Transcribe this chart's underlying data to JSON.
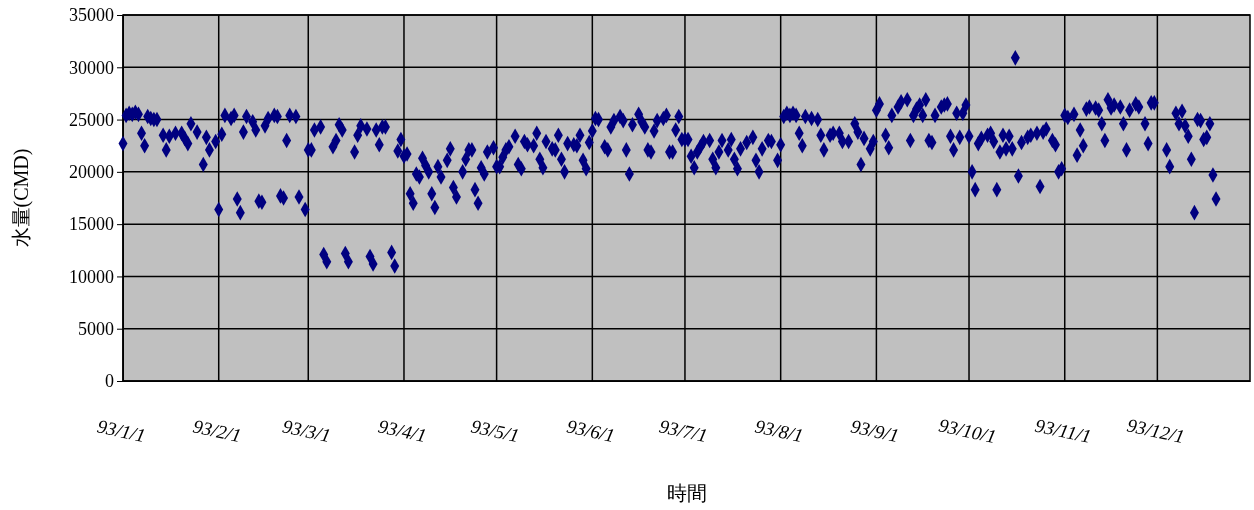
{
  "chart_data": {
    "type": "scatter",
    "xlabel": "時間",
    "ylabel": "水量(CMD)",
    "xlim": [
      "--01-01",
      "--12-31"
    ],
    "ylim": [
      0,
      35000
    ],
    "xticks": [
      {
        "value": "--01-01",
        "label": "93/1/1"
      },
      {
        "value": "--02-01",
        "label": "93/2/1"
      },
      {
        "value": "--03-01",
        "label": "93/3/1"
      },
      {
        "value": "--04-01",
        "label": "93/4/1"
      },
      {
        "value": "--05-01",
        "label": "93/5/1"
      },
      {
        "value": "--06-01",
        "label": "93/6/1"
      },
      {
        "value": "--07-01",
        "label": "93/7/1"
      },
      {
        "value": "--08-01",
        "label": "93/8/1"
      },
      {
        "value": "--09-01",
        "label": "93/9/1"
      },
      {
        "value": "--10-01",
        "label": "93/10/1"
      },
      {
        "value": "--11-01",
        "label": "93/11/1"
      },
      {
        "value": "--12-01",
        "label": "93/12/1"
      }
    ],
    "yticks": [
      0,
      5000,
      10000,
      15000,
      20000,
      25000,
      30000,
      35000
    ],
    "grid": true,
    "marker": "diamond",
    "series": [
      {
        "color": "#000080",
        "x": [
          "--01-01",
          "--01-02",
          "--01-03",
          "--01-04",
          "--01-05",
          "--01-06",
          "--01-07",
          "--01-08",
          "--01-09",
          "--01-10",
          "--01-11",
          "--01-12",
          "--01-14",
          "--01-15",
          "--01-16",
          "--01-18",
          "--01-20",
          "--01-21",
          "--01-22",
          "--01-23",
          "--01-25",
          "--01-27",
          "--01-28",
          "--01-29",
          "--01-31",
          "--02-01",
          "--02-02",
          "--02-03",
          "--02-05",
          "--02-06",
          "--02-07",
          "--02-08",
          "--02-09",
          "--02-10",
          "--02-12",
          "--02-13",
          "--02-14",
          "--02-15",
          "--02-16",
          "--02-17",
          "--02-19",
          "--02-20",
          "--02-21",
          "--02-22",
          "--02-23",
          "--02-24",
          "--02-26",
          "--02-27",
          "--02-29",
          "--03-01",
          "--03-02",
          "--03-03",
          "--03-05",
          "--03-06",
          "--03-07",
          "--03-09",
          "--03-10",
          "--03-11",
          "--03-12",
          "--03-13",
          "--03-14",
          "--03-16",
          "--03-17",
          "--03-18",
          "--03-20",
          "--03-21",
          "--03-22",
          "--03-23",
          "--03-24",
          "--03-25",
          "--03-26",
          "--03-28",
          "--03-29",
          "--03-30",
          "--03-31",
          "--04-01",
          "--04-02",
          "--04-03",
          "--04-04",
          "--04-05",
          "--04-06",
          "--04-07",
          "--04-08",
          "--04-09",
          "--04-10",
          "--04-11",
          "--04-12",
          "--04-13",
          "--04-15",
          "--04-16",
          "--04-17",
          "--04-18",
          "--04-20",
          "--04-21",
          "--04-22",
          "--04-23",
          "--04-24",
          "--04-25",
          "--04-26",
          "--04-27",
          "--04-28",
          "--04-30",
          "--05-01",
          "--05-02",
          "--05-03",
          "--05-04",
          "--05-05",
          "--05-07",
          "--05-08",
          "--05-09",
          "--05-10",
          "--05-11",
          "--05-13",
          "--05-14",
          "--05-15",
          "--05-16",
          "--05-17",
          "--05-19",
          "--05-20",
          "--05-21",
          "--05-22",
          "--05-23",
          "--05-24",
          "--05-26",
          "--05-27",
          "--05-28",
          "--05-29",
          "--05-30",
          "--05-31",
          "--06-01",
          "--06-02",
          "--06-03",
          "--06-05",
          "--06-06",
          "--06-07",
          "--06-08",
          "--06-10",
          "--06-11",
          "--06-12",
          "--06-13",
          "--06-14",
          "--06-16",
          "--06-17",
          "--06-18",
          "--06-19",
          "--06-20",
          "--06-21",
          "--06-22",
          "--06-24",
          "--06-25",
          "--06-26",
          "--06-27",
          "--06-28",
          "--06-29",
          "--06-30",
          "--07-01",
          "--07-02",
          "--07-03",
          "--07-04",
          "--07-05",
          "--07-06",
          "--07-07",
          "--07-09",
          "--07-10",
          "--07-11",
          "--07-12",
          "--07-13",
          "--07-15",
          "--07-16",
          "--07-17",
          "--07-18",
          "--07-19",
          "--07-21",
          "--07-23",
          "--07-24",
          "--07-25",
          "--07-26",
          "--07-28",
          "--07-29",
          "--07-31",
          "--08-01",
          "--08-02",
          "--08-03",
          "--08-04",
          "--08-05",
          "--08-06",
          "--08-07",
          "--08-08",
          "--08-09",
          "--08-11",
          "--08-13",
          "--08-14",
          "--08-15",
          "--08-17",
          "--08-18",
          "--08-20",
          "--08-21",
          "--08-23",
          "--08-25",
          "--08-26",
          "--08-27",
          "--08-28",
          "--08-30",
          "--08-31",
          "--09-01",
          "--09-02",
          "--09-04",
          "--09-05",
          "--09-06",
          "--09-08",
          "--09-09",
          "--09-11",
          "--09-12",
          "--09-13",
          "--09-14",
          "--09-15",
          "--09-16",
          "--09-17",
          "--09-18",
          "--09-19",
          "--09-20",
          "--09-22",
          "--09-23",
          "--09-24",
          "--09-25",
          "--09-26",
          "--09-27",
          "--09-28",
          "--09-29",
          "--09-30",
          "--10-01",
          "--10-02",
          "--10-03",
          "--10-04",
          "--10-05",
          "--10-07",
          "--10-08",
          "--10-09",
          "--10-10",
          "--10-11",
          "--10-12",
          "--10-13",
          "--10-14",
          "--10-15",
          "--10-16",
          "--10-17",
          "--10-18",
          "--10-20",
          "--10-21",
          "--10-23",
          "--10-24",
          "--10-25",
          "--10-26",
          "--10-28",
          "--10-29",
          "--10-30",
          "--10-31",
          "--11-01",
          "--11-02",
          "--11-04",
          "--11-05",
          "--11-06",
          "--11-07",
          "--11-08",
          "--11-09",
          "--11-11",
          "--11-12",
          "--11-13",
          "--11-14",
          "--11-15",
          "--11-16",
          "--11-17",
          "--11-19",
          "--11-20",
          "--11-21",
          "--11-22",
          "--11-24",
          "--11-25",
          "--11-27",
          "--11-28",
          "--11-29",
          "--11-30",
          "--12-04",
          "--12-05",
          "--12-07",
          "--12-08",
          "--12-09",
          "--12-10",
          "--12-11",
          "--12-12",
          "--12-13",
          "--12-14",
          "--12-15",
          "--12-16",
          "--12-17",
          "--12-18",
          "--12-19",
          "--12-20"
        ],
        "values": [
          22700,
          25400,
          25600,
          25500,
          25700,
          25500,
          23700,
          22500,
          25300,
          25100,
          25000,
          25000,
          23500,
          22100,
          23400,
          23700,
          23700,
          23200,
          22700,
          24600,
          23800,
          20700,
          23300,
          22100,
          22900,
          16400,
          23600,
          25400,
          25100,
          25400,
          17400,
          16100,
          23800,
          25300,
          24800,
          24000,
          17200,
          17100,
          24400,
          25100,
          25400,
          25300,
          17700,
          17500,
          23000,
          25400,
          25300,
          17600,
          16400,
          22100,
          22100,
          24000,
          24300,
          12100,
          11400,
          22400,
          23000,
          24500,
          24000,
          12200,
          11400,
          21900,
          23500,
          24400,
          24100,
          11900,
          11200,
          24000,
          22600,
          24300,
          24300,
          12300,
          11000,
          22000,
          23100,
          21500,
          21700,
          17900,
          17000,
          19800,
          19500,
          21300,
          20600,
          20000,
          17900,
          16600,
          20500,
          19500,
          21100,
          22200,
          18500,
          17600,
          20000,
          21200,
          22100,
          22100,
          18300,
          17000,
          20400,
          19800,
          21900,
          22300,
          20500,
          20500,
          21400,
          22100,
          22400,
          23400,
          20700,
          20300,
          22900,
          22600,
          22500,
          23700,
          21200,
          20400,
          22900,
          22200,
          22100,
          23500,
          21200,
          20000,
          22700,
          22600,
          22500,
          23500,
          21100,
          20300,
          22800,
          23900,
          25100,
          25000,
          22400,
          22100,
          24300,
          24900,
          25300,
          24900,
          22100,
          19800,
          24500,
          25500,
          24800,
          24300,
          22100,
          21900,
          23900,
          24900,
          25100,
          25400,
          21900,
          21900,
          24000,
          25300,
          23100,
          23100,
          23100,
          21500,
          20400,
          21900,
          22400,
          22900,
          23000,
          21200,
          20400,
          21900,
          23000,
          22100,
          23100,
          21200,
          20300,
          22200,
          22800,
          23300,
          21100,
          20000,
          22200,
          23000,
          22900,
          21100,
          22600,
          25300,
          25600,
          25400,
          25600,
          25400,
          23700,
          22500,
          25300,
          25100,
          25000,
          23500,
          22100,
          23500,
          23700,
          23700,
          22900,
          22900,
          24600,
          23800,
          20700,
          23200,
          22200,
          22900,
          25900,
          26500,
          23500,
          22300,
          25400,
          26200,
          26700,
          26900,
          23000,
          25400,
          26000,
          26400,
          25400,
          26900,
          23000,
          22800,
          25400,
          26200,
          26400,
          26500,
          23400,
          22100,
          25600,
          23300,
          25600,
          26400,
          23400,
          20000,
          18300,
          22700,
          23200,
          23500,
          23700,
          22900,
          18300,
          21900,
          23500,
          22200,
          23400,
          22200,
          30900,
          19600,
          22800,
          23300,
          23500,
          23700,
          18600,
          23800,
          24100,
          23000,
          22600,
          20000,
          20300,
          25400,
          25200,
          25500,
          21600,
          24000,
          22500,
          26000,
          26200,
          26100,
          25900,
          24600,
          23000,
          26900,
          26100,
          26400,
          26200,
          24600,
          22100,
          25900,
          26500,
          26200,
          24600,
          22700,
          26600,
          26600,
          22100,
          20500,
          25600,
          24600,
          25800,
          24400,
          23400,
          21200,
          16100,
          25000,
          24900,
          23100,
          23300,
          24600,
          19700,
          17400
        ]
      }
    ]
  }
}
